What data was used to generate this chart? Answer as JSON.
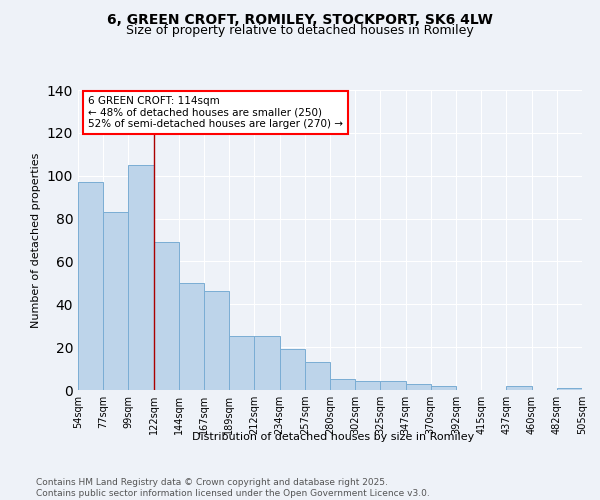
{
  "title_line1": "6, GREEN CROFT, ROMILEY, STOCKPORT, SK6 4LW",
  "title_line2": "Size of property relative to detached houses in Romiley",
  "xlabel": "Distribution of detached houses by size in Romiley",
  "ylabel": "Number of detached properties",
  "bar_values": [
    97,
    83,
    105,
    69,
    50,
    46,
    25,
    25,
    19,
    13,
    5,
    4,
    4,
    3,
    2,
    0,
    0,
    2,
    0,
    1
  ],
  "bin_labels": [
    "54sqm",
    "77sqm",
    "99sqm",
    "122sqm",
    "144sqm",
    "167sqm",
    "189sqm",
    "212sqm",
    "234sqm",
    "257sqm",
    "280sqm",
    "302sqm",
    "325sqm",
    "347sqm",
    "370sqm",
    "392sqm",
    "415sqm",
    "437sqm",
    "460sqm",
    "482sqm",
    "505sqm"
  ],
  "bar_color": "#bdd4ea",
  "bar_edge_color": "#7aadd4",
  "red_line_x": 2.5,
  "annotation_text": "6 GREEN CROFT: 114sqm\n← 48% of detached houses are smaller (250)\n52% of semi-detached houses are larger (270) →",
  "ylim": [
    0,
    140
  ],
  "yticks": [
    0,
    20,
    40,
    60,
    80,
    100,
    120,
    140
  ],
  "background_color": "#eef2f8",
  "grid_color": "#ffffff",
  "footer_text": "Contains HM Land Registry data © Crown copyright and database right 2025.\nContains public sector information licensed under the Open Government Licence v3.0.",
  "title_fontsize": 10,
  "subtitle_fontsize": 9,
  "axis_label_fontsize": 8,
  "tick_fontsize": 7,
  "annotation_fontsize": 7.5,
  "footer_fontsize": 6.5
}
